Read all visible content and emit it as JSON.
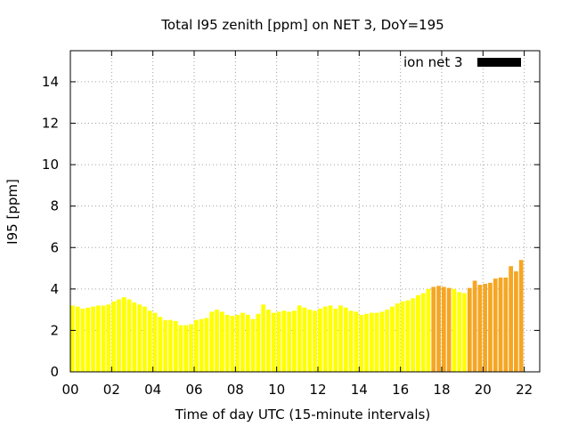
{
  "chart_data": {
    "type": "bar",
    "title": "Total I95 zenith [ppm] on NET 3, DoY=195",
    "xlabel": "Time of day UTC (15-minute intervals)",
    "ylabel": "I95 [ppm]",
    "legend": {
      "label": "ion net 3",
      "color": "#000000",
      "placement": "top-right"
    },
    "xlim": [
      0,
      22.75
    ],
    "ylim": [
      0,
      15.5
    ],
    "xticks": [
      0,
      2,
      4,
      6,
      8,
      10,
      12,
      14,
      16,
      18,
      20,
      22
    ],
    "xtick_labels": [
      "00",
      "02",
      "04",
      "06",
      "08",
      "10",
      "12",
      "14",
      "16",
      "18",
      "20",
      "22"
    ],
    "yticks": [
      0,
      2,
      4,
      6,
      8,
      10,
      12,
      14
    ],
    "ytick_labels": [
      "0",
      "2",
      "4",
      "6",
      "8",
      "10",
      "12",
      "14"
    ],
    "grid": true,
    "interval_hours": 0.25,
    "x_start": 0,
    "values": [
      3.2,
      3.15,
      3.05,
      3.1,
      3.15,
      3.2,
      3.2,
      3.25,
      3.4,
      3.5,
      3.6,
      3.5,
      3.35,
      3.25,
      3.15,
      2.95,
      2.85,
      2.65,
      2.5,
      2.5,
      2.45,
      2.25,
      2.25,
      2.3,
      2.5,
      2.55,
      2.6,
      2.9,
      3.0,
      2.9,
      2.75,
      2.7,
      2.75,
      2.85,
      2.75,
      2.55,
      2.8,
      3.25,
      3.0,
      2.85,
      2.9,
      2.95,
      2.9,
      2.95,
      3.2,
      3.1,
      3.0,
      2.95,
      3.05,
      3.15,
      3.2,
      3.05,
      3.2,
      3.1,
      2.95,
      2.9,
      2.75,
      2.8,
      2.85,
      2.85,
      2.9,
      3.0,
      3.15,
      3.3,
      3.4,
      3.45,
      3.55,
      3.7,
      3.8,
      4.0,
      4.1,
      4.15,
      4.1,
      4.05,
      4.0,
      3.85,
      3.8,
      4.05,
      4.4,
      4.2,
      4.25,
      4.3,
      4.5,
      4.55,
      4.55,
      5.1,
      4.85,
      5.4
    ],
    "colors": [
      "#ffff00",
      "#ffff00",
      "#ffff00",
      "#ffff00",
      "#ffff00",
      "#ffff00",
      "#ffff00",
      "#ffff00",
      "#ffff00",
      "#ffff00",
      "#ffff00",
      "#ffff00",
      "#ffff00",
      "#ffff00",
      "#ffff00",
      "#ffff00",
      "#ffff00",
      "#ffff00",
      "#ffff00",
      "#ffff00",
      "#ffff00",
      "#ffff00",
      "#ffff00",
      "#ffff00",
      "#ffff00",
      "#ffff00",
      "#ffff00",
      "#ffff00",
      "#ffff00",
      "#ffff00",
      "#ffff00",
      "#ffff00",
      "#ffff00",
      "#ffff00",
      "#ffff00",
      "#ffff00",
      "#ffff00",
      "#ffff00",
      "#ffff00",
      "#ffff00",
      "#ffff00",
      "#ffff00",
      "#ffff00",
      "#ffff00",
      "#ffff00",
      "#ffff00",
      "#ffff00",
      "#ffff00",
      "#ffff00",
      "#ffff00",
      "#ffff00",
      "#ffff00",
      "#ffff00",
      "#ffff00",
      "#ffff00",
      "#ffff00",
      "#ffff00",
      "#ffff00",
      "#ffff00",
      "#ffff00",
      "#ffff00",
      "#ffff00",
      "#ffff00",
      "#ffff00",
      "#ffff00",
      "#ffff00",
      "#ffff00",
      "#ffff00",
      "#ffff00",
      "#ffff00",
      "#f5a623",
      "#f5a623",
      "#f5a623",
      "#f5a623",
      "#ffff00",
      "#ffff00",
      "#ffff00",
      "#f5a623",
      "#f5a623",
      "#f5a623",
      "#f5a623",
      "#f5a623",
      "#f5a623",
      "#f5a623",
      "#f5a623",
      "#f5a623",
      "#f5a623",
      "#f5a623"
    ]
  }
}
